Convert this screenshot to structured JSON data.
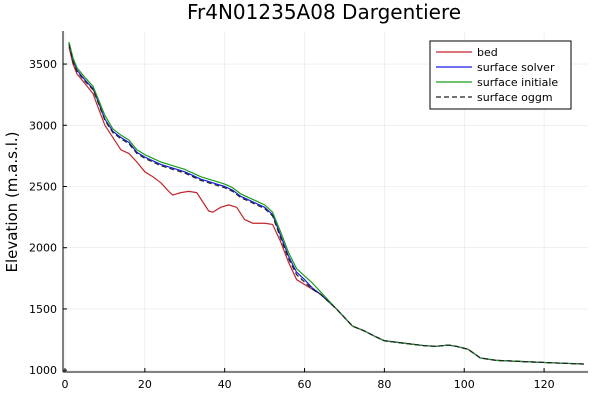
{
  "chart_data": {
    "type": "line",
    "title": "Fr4N01235A08 Dargentiere",
    "xlabel": "",
    "ylabel": "Elevation (m.a.s.l.)",
    "xlim": [
      -0.5,
      131
    ],
    "ylim": [
      985,
      3770
    ],
    "xticks": [
      0,
      20,
      40,
      60,
      80,
      100,
      120
    ],
    "yticks": [
      1000,
      1500,
      2000,
      2500,
      3000,
      3500
    ],
    "grid": true,
    "legend_position": "top-right",
    "series": [
      {
        "name": "bed",
        "color": "#c0272d",
        "dash": "",
        "points": [
          [
            1,
            3640
          ],
          [
            2,
            3500
          ],
          [
            3,
            3420
          ],
          [
            5,
            3340
          ],
          [
            7,
            3260
          ],
          [
            8,
            3170
          ],
          [
            10,
            3000
          ],
          [
            12,
            2900
          ],
          [
            14,
            2800
          ],
          [
            16,
            2770
          ],
          [
            18,
            2700
          ],
          [
            20,
            2620
          ],
          [
            22,
            2580
          ],
          [
            24,
            2530
          ],
          [
            26,
            2460
          ],
          [
            27,
            2430
          ],
          [
            29,
            2450
          ],
          [
            31,
            2460
          ],
          [
            33,
            2450
          ],
          [
            35,
            2350
          ],
          [
            36,
            2300
          ],
          [
            37,
            2290
          ],
          [
            39,
            2330
          ],
          [
            41,
            2350
          ],
          [
            43,
            2330
          ],
          [
            45,
            2230
          ],
          [
            47,
            2200
          ],
          [
            50,
            2200
          ],
          [
            52,
            2190
          ],
          [
            54,
            2050
          ],
          [
            56,
            1880
          ],
          [
            58,
            1740
          ],
          [
            60,
            1700
          ],
          [
            62,
            1660
          ],
          [
            64,
            1620
          ],
          [
            66,
            1560
          ],
          [
            68,
            1500
          ],
          [
            70,
            1430
          ],
          [
            72,
            1360
          ],
          [
            75,
            1320
          ],
          [
            78,
            1270
          ],
          [
            80,
            1240
          ],
          [
            85,
            1220
          ],
          [
            90,
            1200
          ],
          [
            93,
            1195
          ],
          [
            96,
            1205
          ],
          [
            98,
            1195
          ],
          [
            101,
            1170
          ],
          [
            104,
            1100
          ],
          [
            108,
            1080
          ],
          [
            115,
            1070
          ],
          [
            122,
            1060
          ],
          [
            130,
            1050
          ]
        ]
      },
      {
        "name": "surface solver",
        "color": "#1a1ae6",
        "dash": "",
        "points": [
          [
            1,
            3670
          ],
          [
            2,
            3530
          ],
          [
            3,
            3450
          ],
          [
            5,
            3370
          ],
          [
            7,
            3300
          ],
          [
            8,
            3220
          ],
          [
            10,
            3050
          ],
          [
            12,
            2950
          ],
          [
            14,
            2900
          ],
          [
            16,
            2860
          ],
          [
            18,
            2780
          ],
          [
            20,
            2740
          ],
          [
            22,
            2710
          ],
          [
            24,
            2680
          ],
          [
            26,
            2660
          ],
          [
            28,
            2640
          ],
          [
            30,
            2620
          ],
          [
            32,
            2590
          ],
          [
            34,
            2560
          ],
          [
            36,
            2540
          ],
          [
            38,
            2520
          ],
          [
            40,
            2500
          ],
          [
            42,
            2470
          ],
          [
            44,
            2420
          ],
          [
            46,
            2390
          ],
          [
            48,
            2360
          ],
          [
            50,
            2330
          ],
          [
            52,
            2270
          ],
          [
            54,
            2100
          ],
          [
            56,
            1930
          ],
          [
            58,
            1800
          ],
          [
            60,
            1740
          ],
          [
            62,
            1670
          ],
          [
            64,
            1620
          ],
          [
            66,
            1560
          ],
          [
            68,
            1500
          ],
          [
            70,
            1430
          ],
          [
            72,
            1360
          ],
          [
            75,
            1320
          ],
          [
            78,
            1270
          ],
          [
            80,
            1240
          ],
          [
            85,
            1220
          ],
          [
            90,
            1200
          ],
          [
            93,
            1195
          ],
          [
            96,
            1205
          ],
          [
            98,
            1195
          ],
          [
            101,
            1170
          ],
          [
            104,
            1100
          ],
          [
            108,
            1080
          ],
          [
            115,
            1070
          ],
          [
            122,
            1060
          ],
          [
            130,
            1050
          ]
        ]
      },
      {
        "name": "surface initiale",
        "color": "#1a9e1a",
        "dash": "",
        "points": [
          [
            1,
            3680
          ],
          [
            2,
            3550
          ],
          [
            3,
            3470
          ],
          [
            5,
            3390
          ],
          [
            7,
            3320
          ],
          [
            8,
            3240
          ],
          [
            10,
            3080
          ],
          [
            12,
            2970
          ],
          [
            14,
            2920
          ],
          [
            16,
            2880
          ],
          [
            18,
            2800
          ],
          [
            20,
            2760
          ],
          [
            22,
            2730
          ],
          [
            24,
            2700
          ],
          [
            26,
            2680
          ],
          [
            28,
            2660
          ],
          [
            30,
            2640
          ],
          [
            32,
            2610
          ],
          [
            34,
            2580
          ],
          [
            36,
            2560
          ],
          [
            38,
            2540
          ],
          [
            40,
            2520
          ],
          [
            42,
            2490
          ],
          [
            44,
            2440
          ],
          [
            46,
            2410
          ],
          [
            48,
            2380
          ],
          [
            50,
            2350
          ],
          [
            52,
            2290
          ],
          [
            54,
            2130
          ],
          [
            56,
            1960
          ],
          [
            58,
            1830
          ],
          [
            60,
            1770
          ],
          [
            62,
            1710
          ],
          [
            64,
            1640
          ],
          [
            66,
            1570
          ],
          [
            68,
            1500
          ],
          [
            70,
            1430
          ],
          [
            72,
            1360
          ],
          [
            75,
            1320
          ],
          [
            78,
            1270
          ],
          [
            80,
            1240
          ],
          [
            85,
            1220
          ],
          [
            90,
            1200
          ],
          [
            93,
            1195
          ],
          [
            96,
            1205
          ],
          [
            98,
            1195
          ],
          [
            101,
            1170
          ],
          [
            104,
            1100
          ],
          [
            108,
            1080
          ],
          [
            115,
            1070
          ],
          [
            122,
            1060
          ],
          [
            130,
            1050
          ]
        ]
      },
      {
        "name": "surface oggm",
        "color": "#222222",
        "dash": "5 3",
        "points": [
          [
            1,
            3660
          ],
          [
            2,
            3520
          ],
          [
            3,
            3440
          ],
          [
            5,
            3360
          ],
          [
            7,
            3290
          ],
          [
            8,
            3210
          ],
          [
            10,
            3040
          ],
          [
            12,
            2940
          ],
          [
            14,
            2890
          ],
          [
            16,
            2850
          ],
          [
            18,
            2770
          ],
          [
            20,
            2730
          ],
          [
            22,
            2700
          ],
          [
            24,
            2670
          ],
          [
            26,
            2650
          ],
          [
            28,
            2630
          ],
          [
            30,
            2610
          ],
          [
            32,
            2580
          ],
          [
            34,
            2550
          ],
          [
            36,
            2530
          ],
          [
            38,
            2510
          ],
          [
            40,
            2490
          ],
          [
            42,
            2460
          ],
          [
            44,
            2410
          ],
          [
            46,
            2380
          ],
          [
            48,
            2350
          ],
          [
            50,
            2320
          ],
          [
            52,
            2260
          ],
          [
            54,
            2080
          ],
          [
            56,
            1910
          ],
          [
            58,
            1780
          ],
          [
            60,
            1720
          ],
          [
            62,
            1660
          ],
          [
            64,
            1620
          ],
          [
            66,
            1560
          ],
          [
            68,
            1500
          ],
          [
            70,
            1430
          ],
          [
            72,
            1360
          ],
          [
            75,
            1320
          ],
          [
            78,
            1270
          ],
          [
            80,
            1240
          ],
          [
            85,
            1220
          ],
          [
            90,
            1200
          ],
          [
            93,
            1195
          ],
          [
            96,
            1205
          ],
          [
            98,
            1195
          ],
          [
            101,
            1170
          ],
          [
            104,
            1100
          ],
          [
            108,
            1080
          ],
          [
            115,
            1070
          ],
          [
            122,
            1060
          ],
          [
            130,
            1050
          ]
        ]
      }
    ]
  }
}
